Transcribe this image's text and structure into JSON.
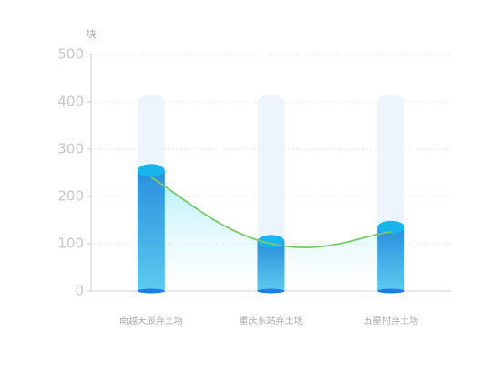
{
  "chart_data": {
    "type": "cylinder-bar-line",
    "y_label": "块",
    "categories": [
      "南越天辰弃土场",
      "重庆东站弃土场",
      "五星村弃土场"
    ],
    "series": [
      {
        "kind": "background",
        "color": "#eef4fb",
        "values": [
          400,
          400,
          400
        ]
      },
      {
        "kind": "bar",
        "color": "#18b4ec",
        "values": [
          255,
          105,
          135
        ]
      },
      {
        "kind": "line",
        "color": "#7ac96a",
        "values": [
          240,
          100,
          125
        ]
      }
    ],
    "ylim": [
      0,
      500
    ],
    "yticks": [
      0,
      100,
      200,
      300,
      400,
      500
    ],
    "grid": true
  }
}
